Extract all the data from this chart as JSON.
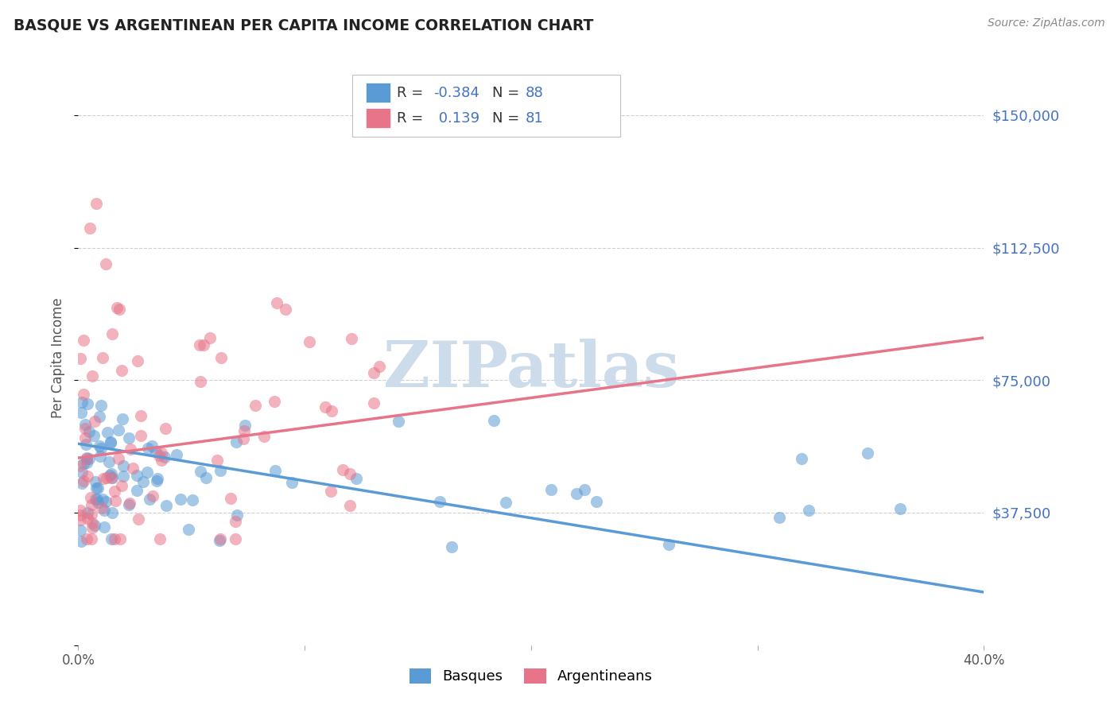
{
  "title": "BASQUE VS ARGENTINEAN PER CAPITA INCOME CORRELATION CHART",
  "source": "Source: ZipAtlas.com",
  "ylabel": "Per Capita Income",
  "xlim": [
    0.0,
    0.4
  ],
  "ylim": [
    0,
    162500
  ],
  "yticks": [
    0,
    37500,
    75000,
    112500,
    150000
  ],
  "ytick_labels": [
    "",
    "$37,500",
    "$75,000",
    "$112,500",
    "$150,000"
  ],
  "xticks": [
    0.0,
    0.1,
    0.2,
    0.3,
    0.4
  ],
  "xtick_labels": [
    "0.0%",
    "",
    "",
    "",
    "40.0%"
  ],
  "basque_color": "#5B9BD5",
  "argentinean_color": "#E8748A",
  "basque_R": -0.384,
  "basque_N": 88,
  "argentinean_R": 0.139,
  "argentinean_N": 81,
  "watermark": "ZIPatlas",
  "watermark_color": "#cddceb",
  "background_color": "#ffffff",
  "grid_color": "#cccccc",
  "title_color": "#222222",
  "axis_label_color": "#555555",
  "ytick_color": "#4472c4",
  "legend_label1": "Basques",
  "legend_label2": "Argentineans",
  "basque_trend_x0": 0.0,
  "basque_trend_y0": 57000,
  "basque_trend_x1": 0.4,
  "basque_trend_y1": 15000,
  "argent_trend_x0": 0.0,
  "argent_trend_y0": 53000,
  "argent_trend_x1": 0.4,
  "argent_trend_y1": 87000
}
